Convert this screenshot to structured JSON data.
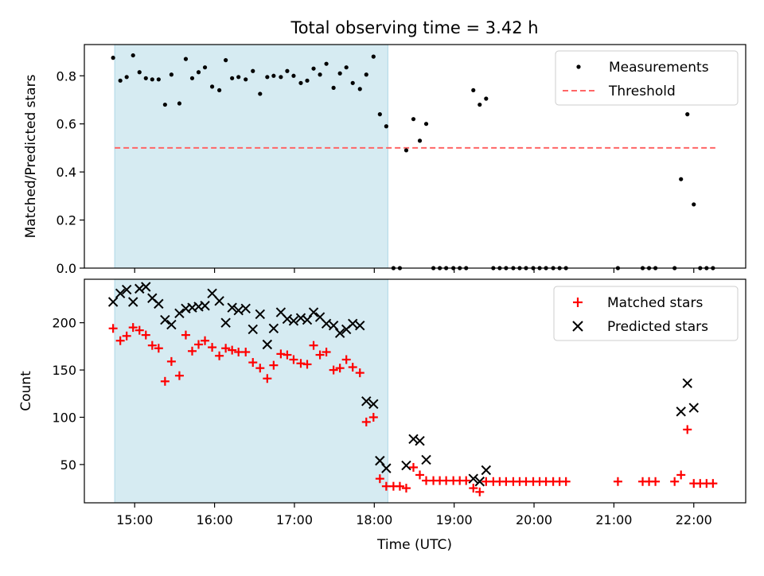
{
  "figure": {
    "title": "Total observing time = 3.42 h",
    "xlabel": "Time (UTC)",
    "xticks": [
      {
        "t": 15.0,
        "label": "15:00"
      },
      {
        "t": 16.0,
        "label": "16:00"
      },
      {
        "t": 17.0,
        "label": "17:00"
      },
      {
        "t": 18.0,
        "label": "18:00"
      },
      {
        "t": 19.0,
        "label": "19:00"
      },
      {
        "t": 20.0,
        "label": "20:00"
      },
      {
        "t": 21.0,
        "label": "21:00"
      },
      {
        "t": 22.0,
        "label": "22:00"
      }
    ],
    "shaded_span_hours": [
      14.75,
      18.17
    ],
    "colors": {
      "shade": "#add8e6",
      "threshold": "#ff6666",
      "matched": "#ff0000",
      "predicted": "#000000",
      "measurement": "#000000"
    }
  },
  "chart_data": [
    {
      "type": "scatter",
      "ylabel": "Matched/Predicted stars",
      "xlim": [
        14.37,
        22.65
      ],
      "ylim": [
        0,
        0.93
      ],
      "yticks": [
        {
          "v": 0.0,
          "label": "0.0"
        },
        {
          "v": 0.2,
          "label": "0.2"
        },
        {
          "v": 0.4,
          "label": "0.4"
        },
        {
          "v": 0.6,
          "label": "0.6"
        },
        {
          "v": 0.8,
          "label": "0.8"
        }
      ],
      "legend": {
        "placement": "top-right",
        "entries": [
          "Measurements",
          "Threshold"
        ]
      },
      "threshold": {
        "name": "Threshold",
        "y": 0.5,
        "x": [
          14.75,
          22.27
        ]
      },
      "series": [
        {
          "name": "Measurements",
          "points": [
            [
              14.73,
              0.875
            ],
            [
              14.82,
              0.78
            ],
            [
              14.9,
              0.795
            ],
            [
              14.98,
              0.885
            ],
            [
              15.06,
              0.815
            ],
            [
              15.14,
              0.79
            ],
            [
              15.22,
              0.785
            ],
            [
              15.3,
              0.785
            ],
            [
              15.38,
              0.68
            ],
            [
              15.46,
              0.805
            ],
            [
              15.56,
              0.685
            ],
            [
              15.64,
              0.87
            ],
            [
              15.72,
              0.79
            ],
            [
              15.8,
              0.815
            ],
            [
              15.88,
              0.835
            ],
            [
              15.97,
              0.755
            ],
            [
              16.06,
              0.74
            ],
            [
              16.14,
              0.865
            ],
            [
              16.22,
              0.79
            ],
            [
              16.3,
              0.795
            ],
            [
              16.39,
              0.785
            ],
            [
              16.48,
              0.82
            ],
            [
              16.57,
              0.725
            ],
            [
              16.66,
              0.795
            ],
            [
              16.74,
              0.8
            ],
            [
              16.83,
              0.795
            ],
            [
              16.91,
              0.82
            ],
            [
              16.99,
              0.8
            ],
            [
              17.08,
              0.77
            ],
            [
              17.16,
              0.78
            ],
            [
              17.24,
              0.83
            ],
            [
              17.32,
              0.805
            ],
            [
              17.4,
              0.85
            ],
            [
              17.49,
              0.75
            ],
            [
              17.57,
              0.81
            ],
            [
              17.65,
              0.835
            ],
            [
              17.73,
              0.77
            ],
            [
              17.82,
              0.745
            ],
            [
              17.9,
              0.805
            ],
            [
              17.99,
              0.88
            ],
            [
              18.07,
              0.64
            ],
            [
              18.15,
              0.59
            ],
            [
              18.24,
              0.0
            ],
            [
              18.32,
              0.0
            ],
            [
              18.4,
              0.49
            ],
            [
              18.49,
              0.62
            ],
            [
              18.57,
              0.53
            ],
            [
              18.65,
              0.6
            ],
            [
              18.74,
              0.0
            ],
            [
              18.82,
              0.0
            ],
            [
              18.9,
              0.0
            ],
            [
              18.99,
              0.0
            ],
            [
              19.07,
              0.0
            ],
            [
              19.15,
              0.0
            ],
            [
              19.24,
              0.74
            ],
            [
              19.32,
              0.68
            ],
            [
              19.4,
              0.705
            ],
            [
              19.49,
              0.0
            ],
            [
              19.57,
              0.0
            ],
            [
              19.65,
              0.0
            ],
            [
              19.74,
              0.0
            ],
            [
              19.82,
              0.0
            ],
            [
              19.9,
              0.0
            ],
            [
              19.99,
              0.0
            ],
            [
              20.07,
              0.0
            ],
            [
              20.15,
              0.0
            ],
            [
              20.24,
              0.0
            ],
            [
              20.32,
              0.0
            ],
            [
              20.4,
              0.0
            ],
            [
              21.05,
              0.0
            ],
            [
              21.36,
              0.0
            ],
            [
              21.44,
              0.0
            ],
            [
              21.52,
              0.0
            ],
            [
              21.76,
              0.0
            ],
            [
              21.84,
              0.37
            ],
            [
              21.92,
              0.64
            ],
            [
              22.0,
              0.265
            ],
            [
              22.08,
              0.0
            ],
            [
              22.16,
              0.0
            ],
            [
              22.24,
              0.0
            ]
          ]
        }
      ]
    },
    {
      "type": "scatter",
      "ylabel": "Count",
      "xlim": [
        14.37,
        22.65
      ],
      "ylim": [
        9.5,
        246
      ],
      "yticks": [
        {
          "v": 50,
          "label": "50"
        },
        {
          "v": 100,
          "label": "100"
        },
        {
          "v": 150,
          "label": "150"
        },
        {
          "v": 200,
          "label": "200"
        }
      ],
      "legend": {
        "placement": "top-right",
        "entries": [
          "Matched stars",
          "Predicted stars"
        ]
      },
      "series": [
        {
          "name": "Matched stars",
          "points": [
            [
              14.73,
              194
            ],
            [
              14.82,
              181
            ],
            [
              14.9,
              186
            ],
            [
              14.98,
              195
            ],
            [
              15.06,
              192
            ],
            [
              15.14,
              187
            ],
            [
              15.22,
              176
            ],
            [
              15.3,
              173
            ],
            [
              15.38,
              138
            ],
            [
              15.46,
              159
            ],
            [
              15.56,
              144
            ],
            [
              15.64,
              187
            ],
            [
              15.72,
              170
            ],
            [
              15.8,
              177
            ],
            [
              15.88,
              181
            ],
            [
              15.97,
              174
            ],
            [
              16.06,
              165
            ],
            [
              16.14,
              173
            ],
            [
              16.22,
              171
            ],
            [
              16.3,
              169
            ],
            [
              16.39,
              169
            ],
            [
              16.48,
              158
            ],
            [
              16.57,
              152
            ],
            [
              16.66,
              141
            ],
            [
              16.74,
              155
            ],
            [
              16.83,
              167
            ],
            [
              16.91,
              166
            ],
            [
              16.99,
              161
            ],
            [
              17.08,
              157
            ],
            [
              17.16,
              156
            ],
            [
              17.24,
              176
            ],
            [
              17.32,
              166
            ],
            [
              17.4,
              169
            ],
            [
              17.49,
              150
            ],
            [
              17.57,
              152
            ],
            [
              17.65,
              161
            ],
            [
              17.73,
              153
            ],
            [
              17.82,
              147
            ],
            [
              17.9,
              95
            ],
            [
              17.99,
              100
            ],
            [
              18.07,
              35
            ],
            [
              18.15,
              27
            ],
            [
              18.24,
              27
            ],
            [
              18.32,
              27
            ],
            [
              18.4,
              25
            ],
            [
              18.49,
              47
            ],
            [
              18.57,
              39
            ],
            [
              18.65,
              33
            ],
            [
              18.74,
              33
            ],
            [
              18.82,
              33
            ],
            [
              18.9,
              33
            ],
            [
              18.99,
              33
            ],
            [
              19.07,
              33
            ],
            [
              19.15,
              33
            ],
            [
              19.24,
              25
            ],
            [
              19.32,
              21
            ],
            [
              19.4,
              32
            ],
            [
              19.49,
              32
            ],
            [
              19.57,
              32
            ],
            [
              19.65,
              32
            ],
            [
              19.74,
              32
            ],
            [
              19.82,
              32
            ],
            [
              19.9,
              32
            ],
            [
              19.99,
              32
            ],
            [
              20.07,
              32
            ],
            [
              20.15,
              32
            ],
            [
              20.24,
              32
            ],
            [
              20.32,
              32
            ],
            [
              20.4,
              32
            ],
            [
              21.05,
              32
            ],
            [
              21.36,
              32
            ],
            [
              21.44,
              32
            ],
            [
              21.52,
              32
            ],
            [
              21.76,
              32
            ],
            [
              21.84,
              39
            ],
            [
              21.92,
              87
            ],
            [
              22.0,
              30
            ],
            [
              22.08,
              30
            ],
            [
              22.16,
              30
            ],
            [
              22.24,
              30
            ]
          ]
        },
        {
          "name": "Predicted stars",
          "points": [
            [
              14.73,
              222
            ],
            [
              14.82,
              231
            ],
            [
              14.9,
              235
            ],
            [
              14.98,
              222
            ],
            [
              15.06,
              236
            ],
            [
              15.14,
              238
            ],
            [
              15.22,
              226
            ],
            [
              15.3,
              220
            ],
            [
              15.38,
              203
            ],
            [
              15.46,
              198
            ],
            [
              15.56,
              210
            ],
            [
              15.64,
              215
            ],
            [
              15.72,
              216
            ],
            [
              15.8,
              217
            ],
            [
              15.88,
              218
            ],
            [
              15.97,
              231
            ],
            [
              16.06,
              223
            ],
            [
              16.14,
              200
            ],
            [
              16.22,
              216
            ],
            [
              16.3,
              213
            ],
            [
              16.39,
              215
            ],
            [
              16.48,
              193
            ],
            [
              16.57,
              209
            ],
            [
              16.66,
              177
            ],
            [
              16.74,
              194
            ],
            [
              16.83,
              211
            ],
            [
              16.91,
              204
            ],
            [
              16.99,
              202
            ],
            [
              17.08,
              205
            ],
            [
              17.16,
              203
            ],
            [
              17.24,
              211
            ],
            [
              17.32,
              206
            ],
            [
              17.4,
              199
            ],
            [
              17.49,
              197
            ],
            [
              17.57,
              189
            ],
            [
              17.65,
              193
            ],
            [
              17.73,
              199
            ],
            [
              17.82,
              197
            ],
            [
              17.9,
              117
            ],
            [
              17.99,
              114
            ],
            [
              18.07,
              54
            ],
            [
              18.15,
              46
            ],
            [
              18.4,
              49
            ],
            [
              18.49,
              77
            ],
            [
              18.57,
              75
            ],
            [
              18.65,
              55
            ],
            [
              19.24,
              35
            ],
            [
              19.32,
              32
            ],
            [
              19.4,
              44
            ],
            [
              21.84,
              106
            ],
            [
              21.92,
              136
            ],
            [
              22.0,
              110
            ]
          ]
        }
      ]
    }
  ]
}
